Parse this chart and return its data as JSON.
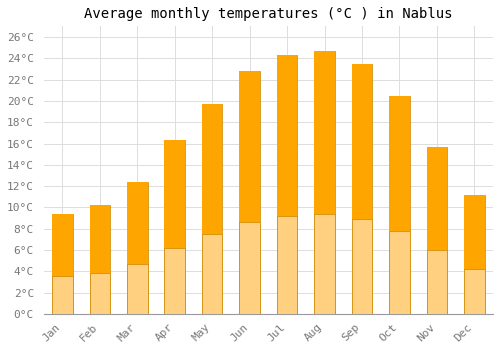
{
  "title": "Average monthly temperatures (°C ) in Nablus",
  "months": [
    "Jan",
    "Feb",
    "Mar",
    "Apr",
    "May",
    "Jun",
    "Jul",
    "Aug",
    "Sep",
    "Oct",
    "Nov",
    "Dec"
  ],
  "values": [
    9.4,
    10.2,
    12.4,
    16.3,
    19.7,
    22.8,
    24.3,
    24.7,
    23.5,
    20.5,
    15.7,
    11.2
  ],
  "bar_color_main": "#FFA500",
  "bar_color_light": "#FFD080",
  "bar_edge_color": "#CC8800",
  "background_color": "#FFFFFF",
  "grid_color": "#DDDDDD",
  "ytick_labels": [
    "0°C",
    "2°C",
    "4°C",
    "6°C",
    "8°C",
    "10°C",
    "12°C",
    "14°C",
    "16°C",
    "18°C",
    "20°C",
    "22°C",
    "24°C",
    "26°C"
  ],
  "ytick_values": [
    0,
    2,
    4,
    6,
    8,
    10,
    12,
    14,
    16,
    18,
    20,
    22,
    24,
    26
  ],
  "ylim": [
    0,
    27
  ],
  "title_fontsize": 10,
  "tick_fontsize": 8,
  "font_family": "monospace"
}
